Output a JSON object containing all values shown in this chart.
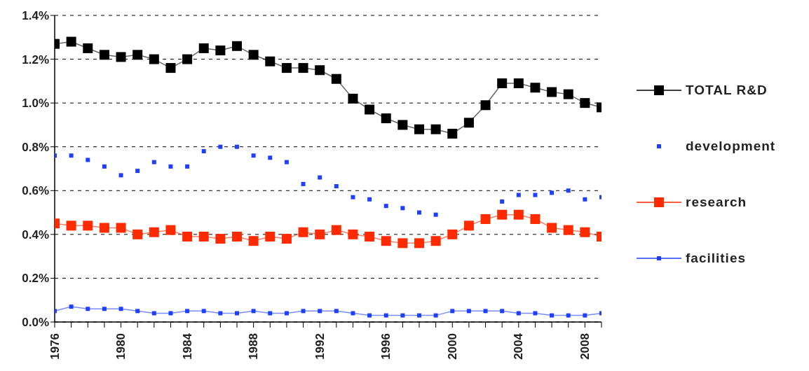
{
  "chart_data": {
    "type": "line",
    "x": [
      1976,
      1977,
      1978,
      1979,
      1980,
      1981,
      1982,
      1983,
      1984,
      1985,
      1986,
      1987,
      1988,
      1989,
      1990,
      1991,
      1992,
      1993,
      1994,
      1995,
      1996,
      1997,
      1998,
      1999,
      2000,
      2001,
      2002,
      2003,
      2004,
      2005,
      2006,
      2007,
      2008,
      2009
    ],
    "series": [
      {
        "name": "TOTAL R&D",
        "color": "#000000",
        "values": [
          1.27,
          1.28,
          1.25,
          1.22,
          1.21,
          1.22,
          1.2,
          1.16,
          1.2,
          1.25,
          1.24,
          1.26,
          1.22,
          1.19,
          1.16,
          1.16,
          1.15,
          1.11,
          1.02,
          0.97,
          0.93,
          0.9,
          0.88,
          0.88,
          0.86,
          0.91,
          0.99,
          1.09,
          1.09,
          1.07,
          1.05,
          1.04,
          1.0,
          0.98
        ]
      },
      {
        "name": "development",
        "type": "scatter",
        "color": "#1f3fff",
        "values": [
          0.76,
          0.76,
          0.74,
          0.71,
          0.67,
          0.69,
          0.73,
          0.71,
          0.71,
          0.78,
          0.8,
          0.8,
          0.76,
          0.75,
          0.73,
          0.63,
          0.66,
          0.62,
          0.57,
          0.56,
          0.53,
          0.52,
          0.5,
          0.49,
          null,
          null,
          null,
          0.55,
          0.58,
          0.58,
          0.59,
          0.6,
          0.56,
          0.57
        ]
      },
      {
        "name": "research",
        "color": "#ff2a00",
        "values": [
          0.45,
          0.44,
          0.44,
          0.43,
          0.43,
          0.4,
          0.41,
          0.42,
          0.39,
          0.39,
          0.38,
          0.39,
          0.37,
          0.39,
          0.38,
          0.41,
          0.4,
          0.42,
          0.4,
          0.39,
          0.37,
          0.36,
          0.36,
          0.37,
          0.4,
          0.44,
          0.47,
          0.49,
          0.49,
          0.47,
          0.43,
          0.42,
          0.41,
          0.39
        ]
      },
      {
        "name": "facilities",
        "color": "#1f3fff",
        "values": [
          0.05,
          0.07,
          0.06,
          0.06,
          0.06,
          0.05,
          0.04,
          0.04,
          0.05,
          0.05,
          0.04,
          0.04,
          0.05,
          0.04,
          0.04,
          0.05,
          0.05,
          0.05,
          0.04,
          0.03,
          0.03,
          0.03,
          0.03,
          0.03,
          0.05,
          0.05,
          0.05,
          0.05,
          0.04,
          0.04,
          0.03,
          0.03,
          0.03,
          0.04
        ]
      }
    ],
    "xlim": [
      1976,
      2009
    ],
    "xticks": [
      1976,
      {
        "value": 1977,
        "label": null
      },
      {
        "value": 1978,
        "label": null
      },
      {
        "value": 1979,
        "label": null
      },
      1980,
      {
        "value": 1981,
        "label": null
      },
      {
        "value": 1982,
        "label": null
      },
      {
        "value": 1983,
        "label": null
      },
      1984,
      {
        "value": 1985,
        "label": null
      },
      {
        "value": 1986,
        "label": null
      },
      {
        "value": 1987,
        "label": null
      },
      1988,
      {
        "value": 1989,
        "label": null
      },
      {
        "value": 1990,
        "label": null
      },
      {
        "value": 1991,
        "label": null
      },
      1992,
      {
        "value": 1993,
        "label": null
      },
      {
        "value": 1994,
        "label": null
      },
      {
        "value": 1995,
        "label": null
      },
      1996,
      {
        "value": 1997,
        "label": null
      },
      {
        "value": 1998,
        "label": null
      },
      {
        "value": 1999,
        "label": null
      },
      2000,
      {
        "value": 2001,
        "label": null
      },
      {
        "value": 2002,
        "label": null
      },
      {
        "value": 2003,
        "label": null
      },
      2004,
      {
        "value": 2005,
        "label": null
      },
      {
        "value": 2006,
        "label": null
      },
      {
        "value": 2007,
        "label": null
      },
      2008,
      {
        "value": 2009,
        "label": null
      }
    ],
    "ylim": [
      0,
      1.4
    ],
    "yticks": [
      {
        "value": 0,
        "label": "0.0%"
      },
      {
        "value": 0.2,
        "label": "0.2%"
      },
      {
        "value": 0.4,
        "label": "0.4%"
      },
      {
        "value": 0.6,
        "label": "0.6%"
      },
      {
        "value": 0.8,
        "label": "0.8%"
      },
      {
        "value": 1.0,
        "label": "1.0%"
      },
      {
        "value": 1.2,
        "label": "1.2%"
      },
      {
        "value": 1.4,
        "label": "1.4%"
      }
    ],
    "grid": "y",
    "legend": "right",
    "marker": "square",
    "line_style": "solid"
  }
}
